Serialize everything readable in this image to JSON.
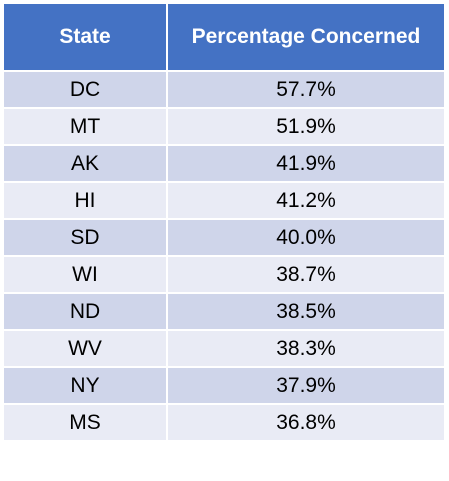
{
  "table": {
    "header": [
      "State",
      "Percentage Concerned"
    ],
    "rows": [
      [
        "DC",
        "57.7%"
      ],
      [
        "MT",
        "51.9%"
      ],
      [
        "AK",
        "41.9%"
      ],
      [
        "HI",
        "41.2%"
      ],
      [
        "SD",
        "40.0%"
      ],
      [
        "WI",
        "38.7%"
      ],
      [
        "ND",
        "38.5%"
      ],
      [
        "WV",
        "38.3%"
      ],
      [
        "NY",
        "37.9%"
      ],
      [
        "MS",
        "36.8%"
      ]
    ]
  }
}
